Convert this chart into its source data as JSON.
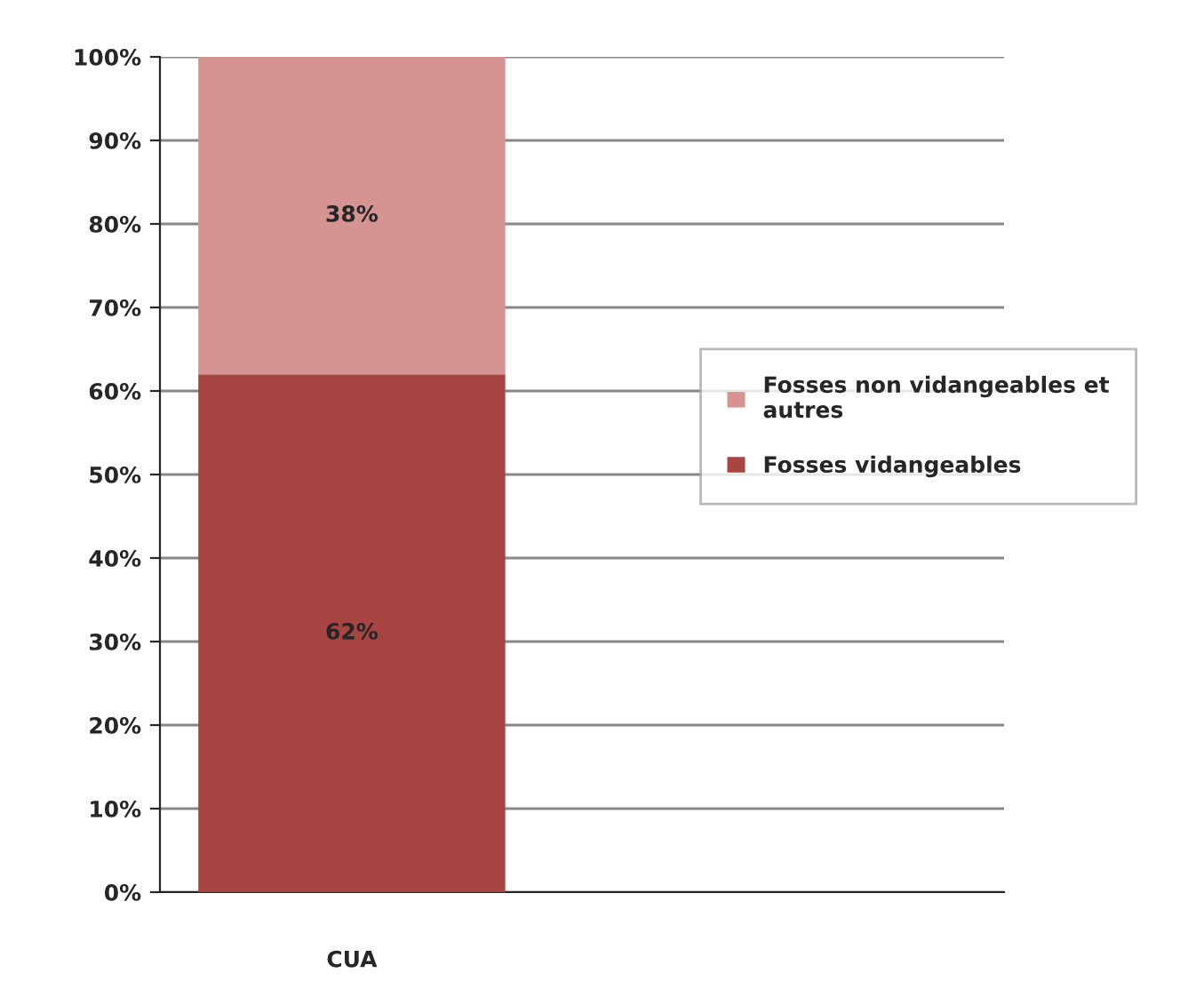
{
  "chart_data": {
    "type": "bar",
    "stacked": true,
    "categories": [
      "CUA"
    ],
    "series": [
      {
        "name": "Fosses vidangeables",
        "color": "#a84543",
        "values": [
          62
        ],
        "value_labels": [
          "62%"
        ]
      },
      {
        "name": "Fosses non vidangeables et autres",
        "color": "#d59392",
        "values": [
          38
        ],
        "value_labels": [
          "38%"
        ]
      }
    ],
    "ylim": [
      0,
      100
    ],
    "yticks": [
      {
        "value": 0,
        "label": "0%"
      },
      {
        "value": 10,
        "label": "10%"
      },
      {
        "value": 20,
        "label": "20%"
      },
      {
        "value": 30,
        "label": "30%"
      },
      {
        "value": 40,
        "label": "40%"
      },
      {
        "value": 50,
        "label": "50%"
      },
      {
        "value": 60,
        "label": "60%"
      },
      {
        "value": 70,
        "label": "70%"
      },
      {
        "value": 80,
        "label": "80%"
      },
      {
        "value": 90,
        "label": "90%"
      },
      {
        "value": 100,
        "label": "100%"
      }
    ],
    "grid": "y",
    "legend": "right"
  }
}
